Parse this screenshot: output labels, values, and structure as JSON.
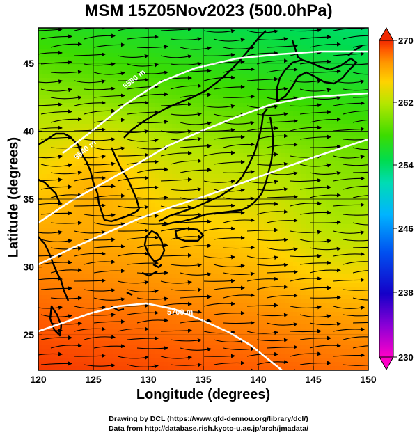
{
  "title": "MSM 15Z05Nov2023 (500.0hPa)",
  "axes": {
    "xlabel": "Longitude (degrees)",
    "ylabel": "Latitude  (degrees)",
    "x_ticks": [
      "120",
      "125",
      "130",
      "135",
      "140",
      "145",
      "150"
    ],
    "y_ticks": [
      "45",
      "40",
      "35",
      "30",
      "25"
    ],
    "x_range": [
      120,
      150
    ],
    "y_range": [
      22.4,
      47.6
    ]
  },
  "colorbar": {
    "ticks": [
      "270",
      "262",
      "254",
      "246",
      "238",
      "230"
    ],
    "range": [
      230,
      270
    ],
    "colors": [
      "#ff00c8",
      "#8a00d6",
      "#1400c8",
      "#0050f0",
      "#00b4ff",
      "#00dcb4",
      "#00dc50",
      "#3cdc00",
      "#b4e600",
      "#ffd200",
      "#ff9600",
      "#ff5a00",
      "#f02800"
    ]
  },
  "contours": [
    {
      "label": "5700 m",
      "color": "#ffffff"
    },
    {
      "label": "5580 m",
      "color": "#ffffff"
    },
    {
      "label": "5640 m",
      "color": "#ffffff"
    },
    {
      "label": "5520 m",
      "color": "#ffffff"
    },
    {
      "label": "5500 m",
      "color": "#ffffff"
    }
  ],
  "credit_line1": "Drawing by DCL (https://www.gfd-dennou.org/library/dcl/)",
  "credit_line2": "Data from http://database.rish.kyoto-u.ac.jp/arch/jmadata/"
}
